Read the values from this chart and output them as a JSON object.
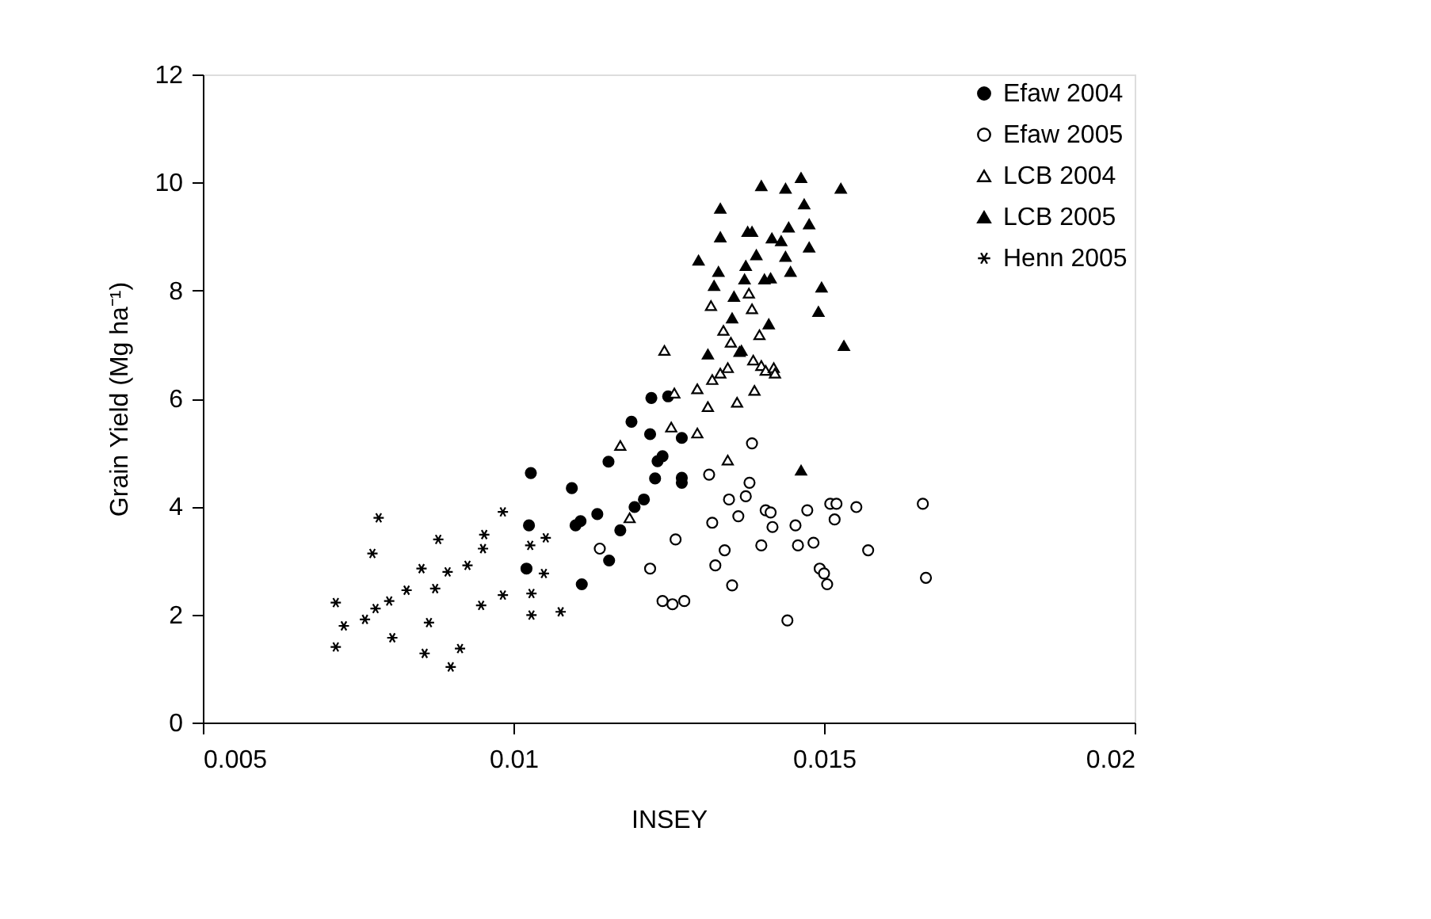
{
  "chart_data": {
    "type": "scatter",
    "xlabel": "INSEY",
    "ylabel": "Grain Yield (Mg ha⁻¹)",
    "xlim": [
      0.005,
      0.02
    ],
    "xticks": [
      0.005,
      0.01,
      0.015,
      0.02
    ],
    "ylim": [
      0,
      12
    ],
    "yticks": [
      0,
      2,
      4,
      6,
      8,
      10,
      12
    ],
    "grid": false,
    "legend": "top right",
    "series": [
      {
        "name": "Efaw 2004",
        "color": "#000000",
        "marker": "circle",
        "x": [
          0.01028,
          0.01025,
          0.01021,
          0.01094,
          0.011,
          0.01108,
          0.0111,
          0.01135,
          0.01154,
          0.01153,
          0.01172,
          0.0119,
          0.01195,
          0.0121,
          0.0122,
          0.01222,
          0.01228,
          0.01232,
          0.0124,
          0.01249,
          0.01271,
          0.01271,
          0.01271
        ],
        "values": [
          4.62,
          3.65,
          2.85,
          4.34,
          3.65,
          3.73,
          2.56,
          3.86,
          3.0,
          4.83,
          3.56,
          5.57,
          3.99,
          4.13,
          5.34,
          6.01,
          4.52,
          4.84,
          4.93,
          6.04,
          5.27,
          4.53,
          4.44
        ]
      },
      {
        "name": "Efaw 2005",
        "color": "#ffffff",
        "marker": "circle",
        "x": [
          0.01139,
          0.0122,
          0.0124,
          0.01256,
          0.01275,
          0.01261,
          0.01315,
          0.0132,
          0.01325,
          0.0134,
          0.01347,
          0.01352,
          0.01362,
          0.01374,
          0.0138,
          0.01384,
          0.01399,
          0.01406,
          0.01414,
          0.01417,
          0.01441,
          0.01454,
          0.01458,
          0.01473,
          0.01483,
          0.01493,
          0.015,
          0.01505,
          0.0151,
          0.01517,
          0.0152,
          0.01552,
          0.01571,
          0.01659,
          0.01664
        ],
        "values": [
          3.22,
          2.85,
          2.25,
          2.19,
          2.25,
          3.39,
          4.59,
          3.7,
          2.91,
          3.19,
          4.13,
          2.54,
          3.82,
          4.19,
          4.44,
          5.17,
          3.28,
          3.93,
          3.89,
          3.62,
          1.89,
          3.65,
          3.28,
          3.93,
          3.33,
          2.85,
          2.76,
          2.56,
          4.05,
          3.76,
          4.05,
          3.99,
          3.19,
          4.05,
          2.68
        ]
      },
      {
        "name": "LCB 2004",
        "color": "#ffffff",
        "marker": "triangle",
        "x": [
          0.01172,
          0.01187,
          0.01243,
          0.01254,
          0.01259,
          0.01296,
          0.01296,
          0.01313,
          0.01318,
          0.0132,
          0.01333,
          0.01338,
          0.01345,
          0.01345,
          0.0135,
          0.0136,
          0.01364,
          0.01379,
          0.01384,
          0.01386,
          0.01388,
          0.01396,
          0.01399,
          0.01406,
          0.01419,
          0.01421
        ],
        "values": [
          5.13,
          3.79,
          6.89,
          5.47,
          6.1,
          5.36,
          6.18,
          5.85,
          7.72,
          6.35,
          6.47,
          7.26,
          4.86,
          6.57,
          7.04,
          5.93,
          6.87,
          7.95,
          7.66,
          6.71,
          6.15,
          7.18,
          6.61,
          6.52,
          6.57,
          6.47
        ]
      },
      {
        "name": "LCB 2005",
        "color": "#000000",
        "marker": "triangle",
        "x": [
          0.01298,
          0.01313,
          0.01323,
          0.0133,
          0.01333,
          0.01333,
          0.01352,
          0.01355,
          0.01367,
          0.01372,
          0.01374,
          0.01377,
          0.01384,
          0.01391,
          0.01399,
          0.01404,
          0.01411,
          0.01414,
          0.01416,
          0.01431,
          0.01438,
          0.01443,
          0.01438,
          0.01446,
          0.01463,
          0.01463,
          0.01468,
          0.01476,
          0.01476,
          0.01491,
          0.01496,
          0.01527,
          0.01532
        ],
        "values": [
          8.56,
          6.82,
          8.09,
          8.35,
          9.52,
          8.99,
          7.49,
          7.89,
          6.89,
          8.21,
          8.46,
          9.09,
          9.09,
          8.66,
          9.94,
          8.21,
          7.38,
          8.23,
          8.97,
          8.92,
          9.89,
          9.17,
          8.63,
          8.35,
          10.09,
          4.67,
          9.6,
          9.23,
          8.8,
          7.61,
          8.06,
          9.89,
          6.98
        ]
      },
      {
        "name": "Henn 2005",
        "color": "#000000",
        "marker": "cross",
        "x": [
          0.00714,
          0.00714,
          0.00727,
          0.00761,
          0.00773,
          0.00783,
          0.00778,
          0.00805,
          0.008,
          0.00828,
          0.00852,
          0.00857,
          0.00864,
          0.00874,
          0.00879,
          0.00899,
          0.00894,
          0.00914,
          0.00926,
          0.00948,
          0.00951,
          0.00953,
          0.00983,
          0.00983,
          0.01027,
          0.01029,
          0.01029,
          0.01049,
          0.01052,
          0.01076
        ],
        "values": [
          2.22,
          1.4,
          1.79,
          1.91,
          3.13,
          3.79,
          2.11,
          1.57,
          2.25,
          2.45,
          2.85,
          1.28,
          1.85,
          2.48,
          3.39,
          1.03,
          2.79,
          1.37,
          2.91,
          2.17,
          3.22,
          3.48,
          2.36,
          3.9,
          3.28,
          2.39,
          1.99,
          2.76,
          3.42,
          2.05
        ]
      }
    ]
  }
}
